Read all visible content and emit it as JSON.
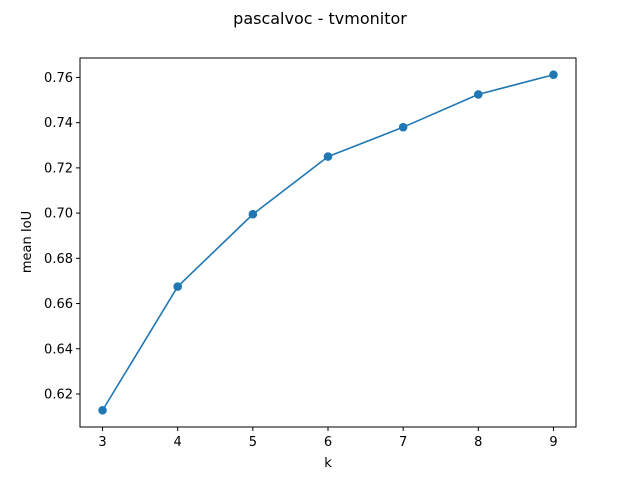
{
  "chart_data": {
    "type": "line",
    "title": "pascalvoc - tvmonitor",
    "xlabel": "k",
    "ylabel": "mean IoU",
    "x": [
      3,
      4,
      5,
      6,
      7,
      8,
      9
    ],
    "series": [
      {
        "values": [
          0.6128,
          0.6675,
          0.6995,
          0.725,
          0.738,
          0.7525,
          0.7612
        ],
        "color": "#1f77b4",
        "marker": "circle"
      }
    ],
    "xlim": [
      2.7,
      9.3
    ],
    "ylim": [
      0.6054,
      0.7686
    ],
    "xticks": [
      "3",
      "4",
      "5",
      "6",
      "7",
      "8",
      "9"
    ],
    "yticks": [
      "0.62",
      "0.64",
      "0.66",
      "0.68",
      "0.70",
      "0.72",
      "0.74",
      "0.76"
    ],
    "grid": false,
    "legend": "none"
  }
}
